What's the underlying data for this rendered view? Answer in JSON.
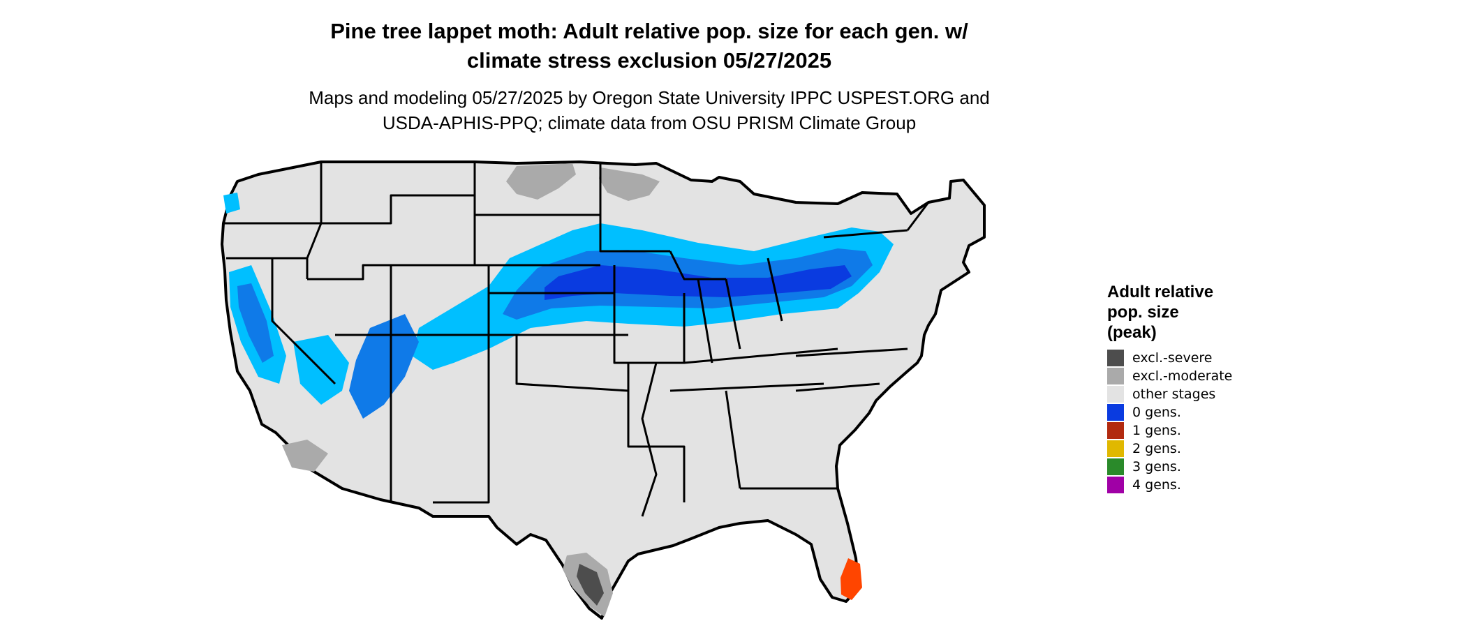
{
  "title_line1": "Pine tree lappet moth: Adult relative pop. size for each gen. w/",
  "title_line2": "climate stress exclusion 05/27/2025",
  "subtitle_line1": "Maps and modeling 05/27/2025 by Oregon State University IPPC USPEST.ORG and",
  "subtitle_line2": "USDA-APHIS-PPQ; climate data from OSU PRISM Climate Group",
  "legend": {
    "title_lines": [
      "Adult relative",
      "pop. size",
      "(peak)"
    ],
    "items": [
      {
        "label": "excl.-severe",
        "color": "#4d4d4d"
      },
      {
        "label": "excl.-moderate",
        "color": "#aaaaaa"
      },
      {
        "label": "other stages",
        "color": "#e3e3e3"
      },
      {
        "label": "0 gens.",
        "color": "#0a3be0"
      },
      {
        "label": "1 gens.",
        "color": "#b22a0f"
      },
      {
        "label": "2 gens.",
        "color": "#e0b800"
      },
      {
        "label": "3 gens.",
        "color": "#2a8a2a"
      },
      {
        "label": "4 gens.",
        "color": "#a000a6"
      }
    ]
  },
  "map_colors": {
    "background": "#e3e3e3",
    "low_pop": "#00bfff",
    "mid_pop": "#0f7ae8",
    "high_pop": "#0a3be0",
    "excl_moderate": "#aaaaaa",
    "excl_severe": "#4d4d4d",
    "one_gen_florida": "#ff4500",
    "borders": "#000000"
  }
}
